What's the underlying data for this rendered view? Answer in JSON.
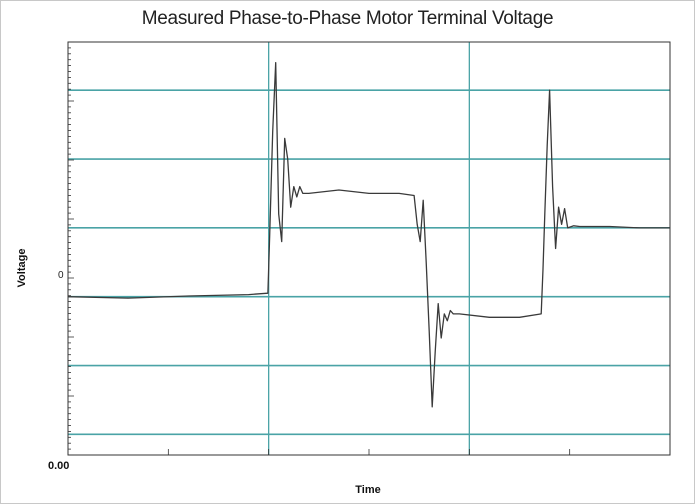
{
  "chart_data": {
    "type": "line",
    "title": "Measured Phase-to-Phase Motor Terminal Voltage",
    "xlabel": "Time",
    "ylabel": "Voltage",
    "x_tick_labels": [
      "0.00"
    ],
    "y_tick_labels": [
      "0"
    ],
    "xlim": [
      0,
      100
    ],
    "ylim": [
      -2.3,
      3.7
    ],
    "grid": true,
    "colors": {
      "trace": "#3a3a3a",
      "grid": "#4aa3a6",
      "axis": "#333333"
    },
    "series": [
      {
        "x": [
          0,
          10,
          20,
          30,
          33.2,
          33.5,
          34,
          34.5,
          35,
          35.5,
          36,
          36.5,
          37,
          37.5,
          38,
          38.5,
          39,
          40,
          45,
          50,
          55,
          57.5,
          58,
          58.5,
          59,
          59.5,
          60,
          60.5,
          61,
          61.5,
          62,
          62.5,
          63,
          63.5,
          64,
          65,
          70,
          75,
          78.6,
          78.9,
          79.2,
          79.6,
          80,
          80.5,
          81,
          81.5,
          82,
          82.5,
          83,
          84,
          85,
          90,
          95,
          100
        ],
        "y": [
          0.0,
          -0.02,
          0.01,
          0.03,
          0.05,
          0.9,
          2.4,
          3.4,
          1.2,
          0.8,
          2.3,
          2.0,
          1.3,
          1.6,
          1.45,
          1.6,
          1.5,
          1.5,
          1.55,
          1.5,
          1.5,
          1.47,
          1.05,
          0.8,
          1.4,
          0.5,
          -0.5,
          -1.6,
          -0.8,
          -0.1,
          -0.6,
          -0.25,
          -0.35,
          -0.2,
          -0.25,
          -0.25,
          -0.3,
          -0.3,
          -0.25,
          0.4,
          1.2,
          2.2,
          3.0,
          1.6,
          0.7,
          1.3,
          1.05,
          1.28,
          1.0,
          1.03,
          1.02,
          1.02,
          1.0,
          1.0
        ]
      }
    ]
  }
}
